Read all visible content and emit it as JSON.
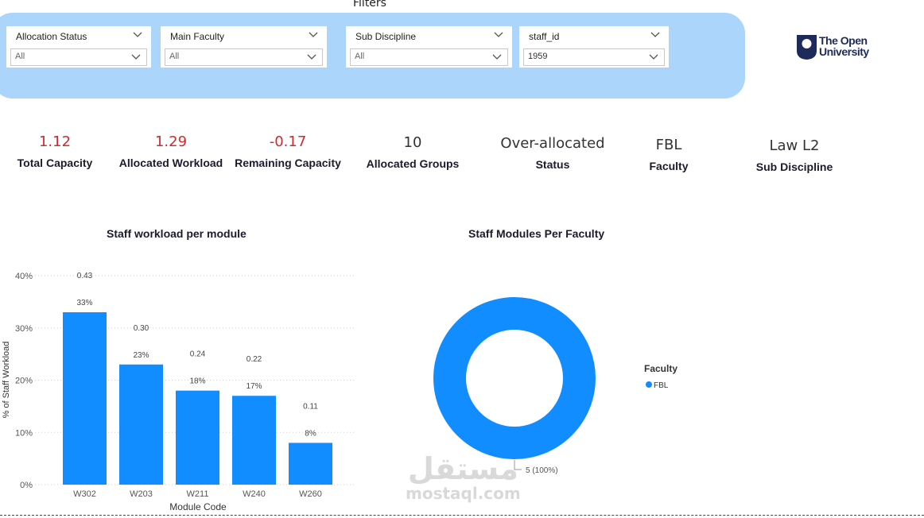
{
  "filters": {
    "title": "Filters",
    "items": [
      {
        "label": "Allocation Status",
        "value": "All"
      },
      {
        "label": "Main Faculty",
        "value": "All"
      },
      {
        "label": "Sub Discipline",
        "value": "All"
      },
      {
        "label": "staff_id",
        "value": "1959"
      }
    ]
  },
  "logo": {
    "line1": "The Open",
    "line2": "University"
  },
  "kpis": [
    {
      "value": "1.12",
      "label": "Total Capacity"
    },
    {
      "value": "1.29",
      "label": "Allocated Workload"
    },
    {
      "value": "-0.17",
      "label": "Remaining Capacity"
    },
    {
      "value": "10",
      "label": "Allocated Groups"
    },
    {
      "value": "Over-allocated",
      "label": "Status"
    },
    {
      "value": "FBL",
      "label": "Faculty"
    },
    {
      "value": "Law L2",
      "label": "Sub Discipline"
    }
  ],
  "colors": {
    "accent": "#118dff",
    "negative": "#d3282d",
    "filter_panel": "#acd5fb"
  },
  "chart_data": [
    {
      "type": "bar",
      "title": "Staff workload per module",
      "xlabel": "Module Code",
      "ylabel": "% of Staff Workload",
      "categories": [
        "W302",
        "W203",
        "W211",
        "W240",
        "W260"
      ],
      "values": [
        33,
        23,
        18,
        17,
        8
      ],
      "value_labels": [
        "33%",
        "23%",
        "18%",
        "17%",
        "8%"
      ],
      "secondary_labels": [
        "0.43",
        "0.30",
        "0.24",
        "0.22",
        "0.11"
      ],
      "yticks": [
        "0%",
        "10%",
        "20%",
        "30%",
        "40%"
      ],
      "ylim": [
        0,
        40
      ],
      "grid": true
    },
    {
      "type": "pie",
      "title": "Staff Modules Per Faculty",
      "legend_title": "Faculty",
      "legend_position": "right",
      "slices": [
        {
          "name": "FBL",
          "value": 5,
          "label": "5 (100%)"
        }
      ]
    }
  ],
  "watermark": {
    "line1": "مستقل",
    "line2": "mostaql.com"
  }
}
